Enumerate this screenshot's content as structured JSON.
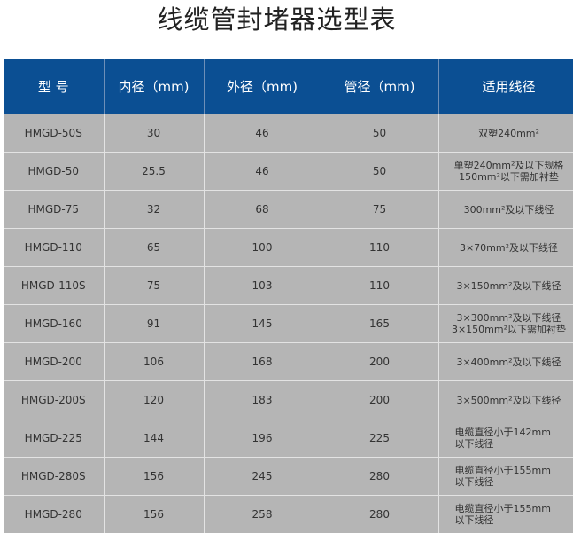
{
  "title": "线缆管封堵器选型表",
  "headers": [
    "型 号",
    "内径（mm)",
    "外径（mm)",
    "管径（mm)",
    "适用线径"
  ],
  "rows": [
    [
      "HMGD-50S",
      "30",
      "46",
      "50",
      "双塑240mm²",
      ""
    ],
    [
      "HMGD-50",
      "25.5",
      "46",
      "50",
      "单塑240mm²及以下规格",
      "150mm²以下需加衬垫"
    ],
    [
      "HMGD-75",
      "32",
      "68",
      "75",
      "300mm²及以下线径",
      ""
    ],
    [
      "HMGD-110",
      "65",
      "100",
      "110",
      "3×70mm²及以下线径",
      ""
    ],
    [
      "HMGD-110S",
      "75",
      "103",
      "110",
      "3×150mm²及以下线径",
      ""
    ],
    [
      "HMGD-160",
      "91",
      "145",
      "165",
      "3×300mm²及以下线径",
      "3×150mm²以下需加衬垫"
    ],
    [
      "HMGD-200",
      "106",
      "168",
      "200",
      "3×400mm²及以下线径",
      ""
    ],
    [
      "HMGD-200S",
      "120",
      "183",
      "200",
      "3×500mm²及以下线径",
      ""
    ],
    [
      "HMGD-225",
      "144",
      "196",
      "225",
      "电缆直径小于142mm",
      "以下线径"
    ],
    [
      "HMGD-280S",
      "156",
      "245",
      "280",
      "电缆直径小于155mm",
      "以下线径"
    ],
    [
      "HMGD-280",
      "156",
      "258",
      "280",
      "电缆直径小于155mm",
      "以下线径"
    ]
  ],
  "colors": {
    "header_bg": "#0b4f93",
    "row_bg": "#b5b5b5"
  }
}
